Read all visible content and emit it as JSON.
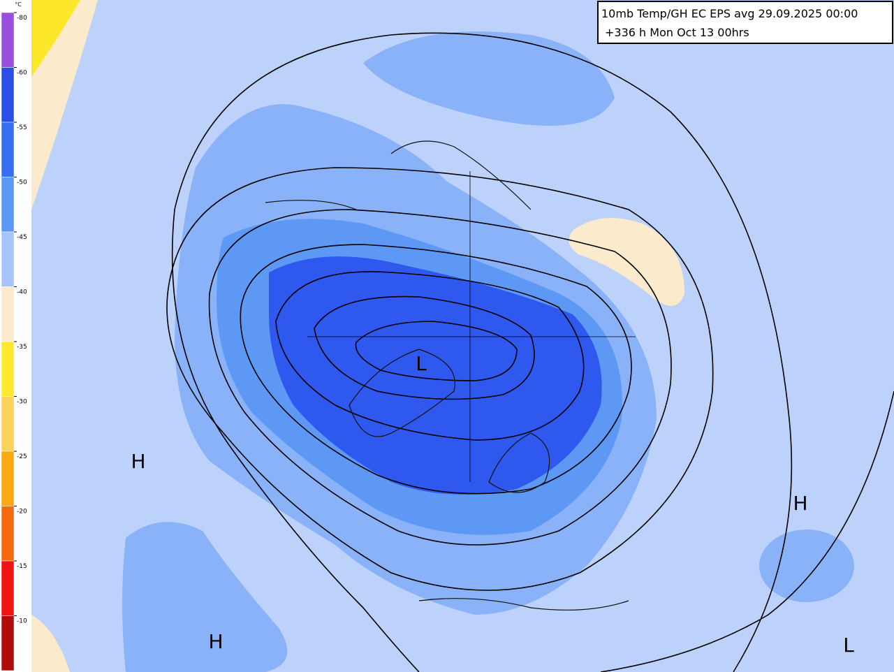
{
  "header": {
    "line1": "10mb Temp/GH EC EPS avg 29.09.2025 00:00",
    "line2": "+336 h Mon Oct 13 00hrs"
  },
  "colorbar": {
    "unit": "°C",
    "levels": [
      -80,
      -60,
      -55,
      -50,
      -45,
      -40,
      -35,
      -30,
      -25,
      -20,
      -15,
      -10
    ],
    "colors": [
      "#9a4fdc",
      "#2b4fe6",
      "#3a6ef0",
      "#5d98f4",
      "#a6c4fa",
      "#fbeacb",
      "#fdea2e",
      "#fcd15a",
      "#fba813",
      "#f56a10",
      "#f01414",
      "#b00c0c"
    ]
  },
  "pressure_labels": [
    "H",
    "H",
    "H",
    "L",
    "L"
  ]
}
